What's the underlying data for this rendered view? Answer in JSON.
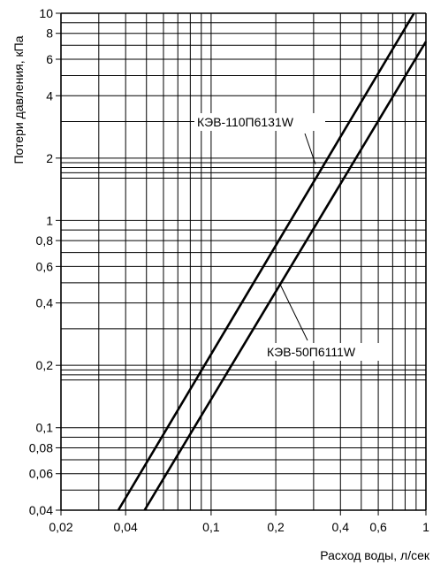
{
  "chart_data": {
    "type": "line",
    "x_scale": "log",
    "y_scale": "log",
    "xlim": [
      0.02,
      1
    ],
    "ylim": [
      0.04,
      10
    ],
    "xlabel": "Расход воды, л/сек",
    "ylabel": "Потери давления, кПа",
    "grid": true,
    "x_ticks": [
      {
        "value": 0.02,
        "label": "0,02"
      },
      {
        "value": 0.04,
        "label": "0,04"
      },
      {
        "value": 0.1,
        "label": "0,1"
      },
      {
        "value": 0.2,
        "label": "0,2"
      },
      {
        "value": 0.4,
        "label": "0,4"
      },
      {
        "value": 0.6,
        "label": "0,6"
      },
      {
        "value": 1,
        "label": "1"
      }
    ],
    "y_ticks": [
      {
        "value": 0.04,
        "label": "0,04"
      },
      {
        "value": 0.06,
        "label": "0,06"
      },
      {
        "value": 0.08,
        "label": "0,08"
      },
      {
        "value": 0.1,
        "label": "0,1"
      },
      {
        "value": 0.2,
        "label": "0,2"
      },
      {
        "value": 0.4,
        "label": "0,4"
      },
      {
        "value": 0.6,
        "label": "0,6"
      },
      {
        "value": 0.8,
        "label": "0,8"
      },
      {
        "value": 1,
        "label": "1"
      },
      {
        "value": 2,
        "label": "2"
      },
      {
        "value": 4,
        "label": "4"
      },
      {
        "value": 6,
        "label": "6"
      },
      {
        "value": 8,
        "label": "8"
      },
      {
        "value": 10,
        "label": "10"
      }
    ],
    "x_grid": [
      0.02,
      0.03,
      0.04,
      0.05,
      0.06,
      0.07,
      0.08,
      0.09,
      0.1,
      0.2,
      0.3,
      0.4,
      0.5,
      0.6,
      0.7,
      0.8,
      0.9,
      1
    ],
    "y_grid": [
      0.04,
      0.05,
      0.06,
      0.07,
      0.08,
      0.09,
      0.1,
      0.17,
      0.18,
      0.19,
      0.2,
      0.3,
      0.4,
      0.5,
      0.6,
      0.7,
      0.8,
      0.9,
      1,
      1.6,
      1.7,
      1.8,
      1.9,
      2,
      3,
      4,
      5,
      6,
      7,
      8,
      9,
      10
    ],
    "series": [
      {
        "name": "КЭВ-110П6131W",
        "points": [
          [
            0.037,
            0.04
          ],
          [
            0.88,
            10
          ]
        ]
      },
      {
        "name": "КЭВ-50П6111W",
        "points": [
          [
            0.049,
            0.04
          ],
          [
            1,
            7.3
          ]
        ]
      }
    ],
    "annotations": [
      {
        "text": "КЭВ-110П6131W",
        "series": 0,
        "point": [
          0.306,
          1.87
        ]
      },
      {
        "text": "КЭВ-50П6111W",
        "series": 1,
        "point": [
          0.21,
          0.49
        ]
      }
    ]
  }
}
